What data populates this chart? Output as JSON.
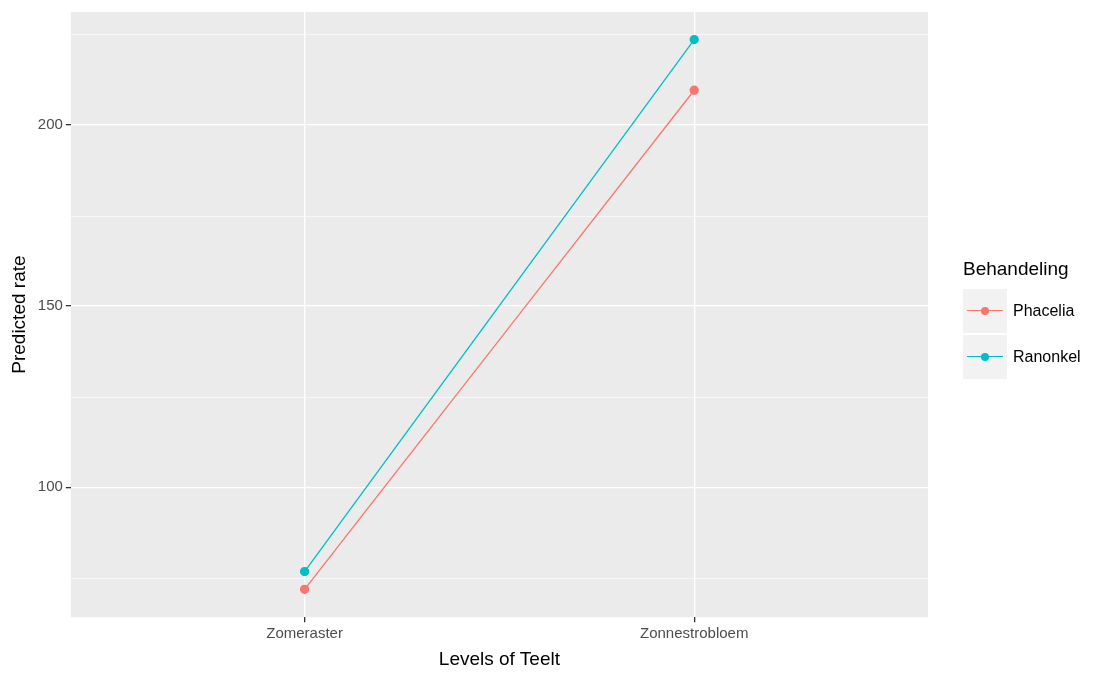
{
  "chart_data": {
    "type": "line",
    "xlabel": "Levels of Teelt",
    "ylabel": "Predicted rate",
    "legend_title": "Behandeling",
    "categories": [
      "Zomeraster",
      "Zonnestrobloem"
    ],
    "series": [
      {
        "name": "Phacelia",
        "color": "#f8766d",
        "values": [
          71.8,
          209.6
        ]
      },
      {
        "name": "Ranonkel",
        "color": "#00bfc4",
        "values": [
          76.7,
          223.6
        ]
      }
    ],
    "ylim": [
      64.1,
      231.2
    ],
    "yticks": [
      100,
      150,
      200
    ],
    "grid": true,
    "legend": "right",
    "marker": "circle",
    "line_style": "solid"
  }
}
